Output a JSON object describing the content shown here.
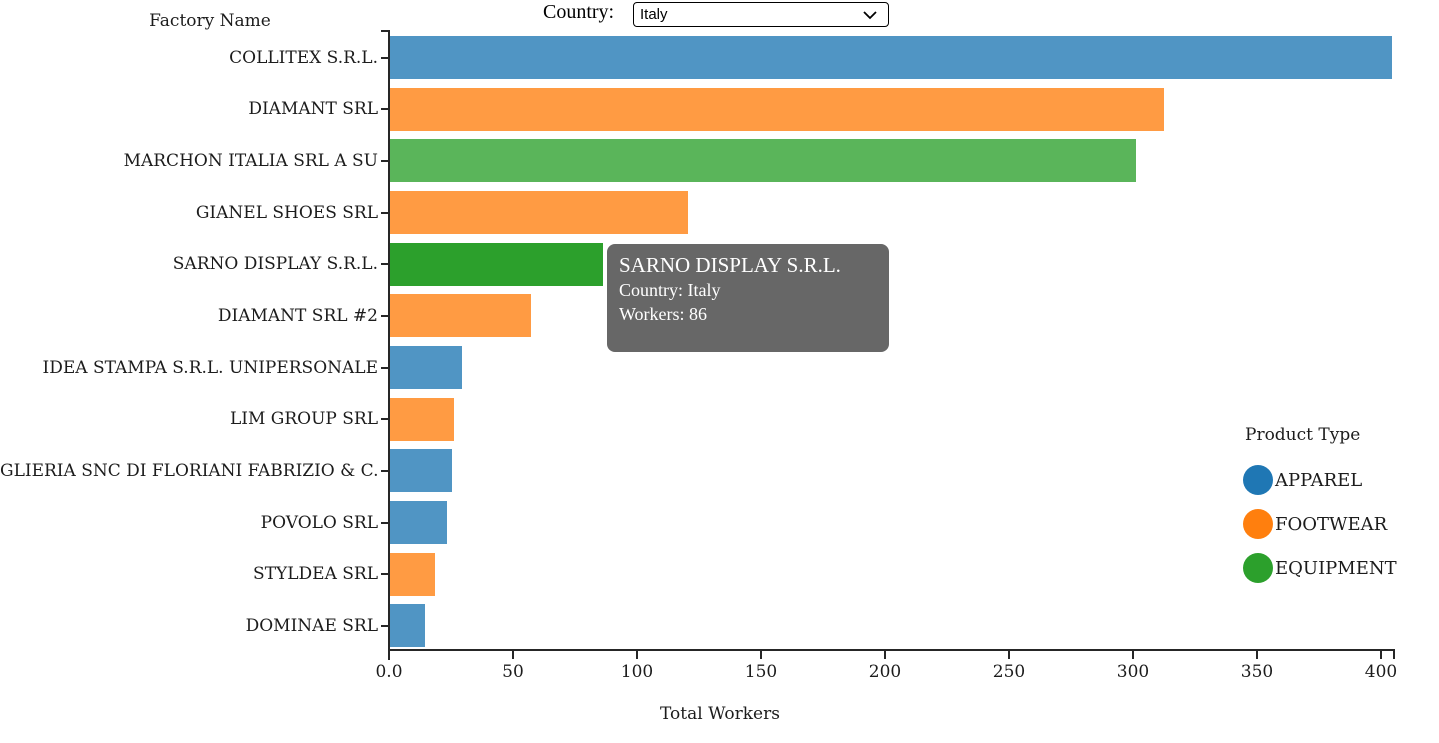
{
  "controls": {
    "country_label": "Country:",
    "selected_country": "Italy"
  },
  "chart_data": {
    "type": "bar",
    "orientation": "horizontal",
    "y_axis_title": "Factory Name",
    "xlabel": "Total Workers",
    "xlim": [
      0,
      404
    ],
    "x_tick_labels": [
      "0.0",
      "50",
      "100",
      "150",
      "200",
      "250",
      "300",
      "350",
      "400"
    ],
    "x_tick_values": [
      0,
      50,
      100,
      150,
      200,
      250,
      300,
      350,
      400
    ],
    "categories": [
      "COLLITEX S.R.L.",
      "DIAMANT SRL",
      "MARCHON ITALIA SRL A SU",
      "GIANEL SHOES SRL",
      "SARNO DISPLAY S.R.L.",
      "DIAMANT SRL #2",
      "IDEA STAMPA S.R.L. UNIPERSONALE",
      "LIM GROUP SRL",
      "GLIERIA SNC DI FLORIANI FABRIZIO & C.",
      "POVOLO SRL",
      "STYLDEA SRL",
      "DOMINAE SRL"
    ],
    "values": [
      404,
      312,
      301,
      120,
      86,
      57,
      29,
      26,
      25,
      23,
      18,
      14
    ],
    "product_types": [
      "APPAREL",
      "FOOTWEAR",
      "EQUIPMENT",
      "FOOTWEAR",
      "EQUIPMENT",
      "FOOTWEAR",
      "APPAREL",
      "FOOTWEAR",
      "APPAREL",
      "APPAREL",
      "FOOTWEAR",
      "APPAREL"
    ],
    "highlighted_index": 4,
    "colors": {
      "APPAREL": "#1f77b4",
      "FOOTWEAR": "#ff7f0e",
      "EQUIPMENT": "#2ca02c"
    }
  },
  "legend": {
    "title": "Product Type",
    "items": [
      {
        "label": "APPAREL",
        "color": "#1f77b4"
      },
      {
        "label": "FOOTWEAR",
        "color": "#ff7f0e"
      },
      {
        "label": "EQUIPMENT",
        "color": "#2ca02c"
      }
    ]
  },
  "tooltip": {
    "title": "SARNO DISPLAY S.R.L.",
    "country_line": "Country: Italy",
    "workers_line": "Workers: 86"
  }
}
